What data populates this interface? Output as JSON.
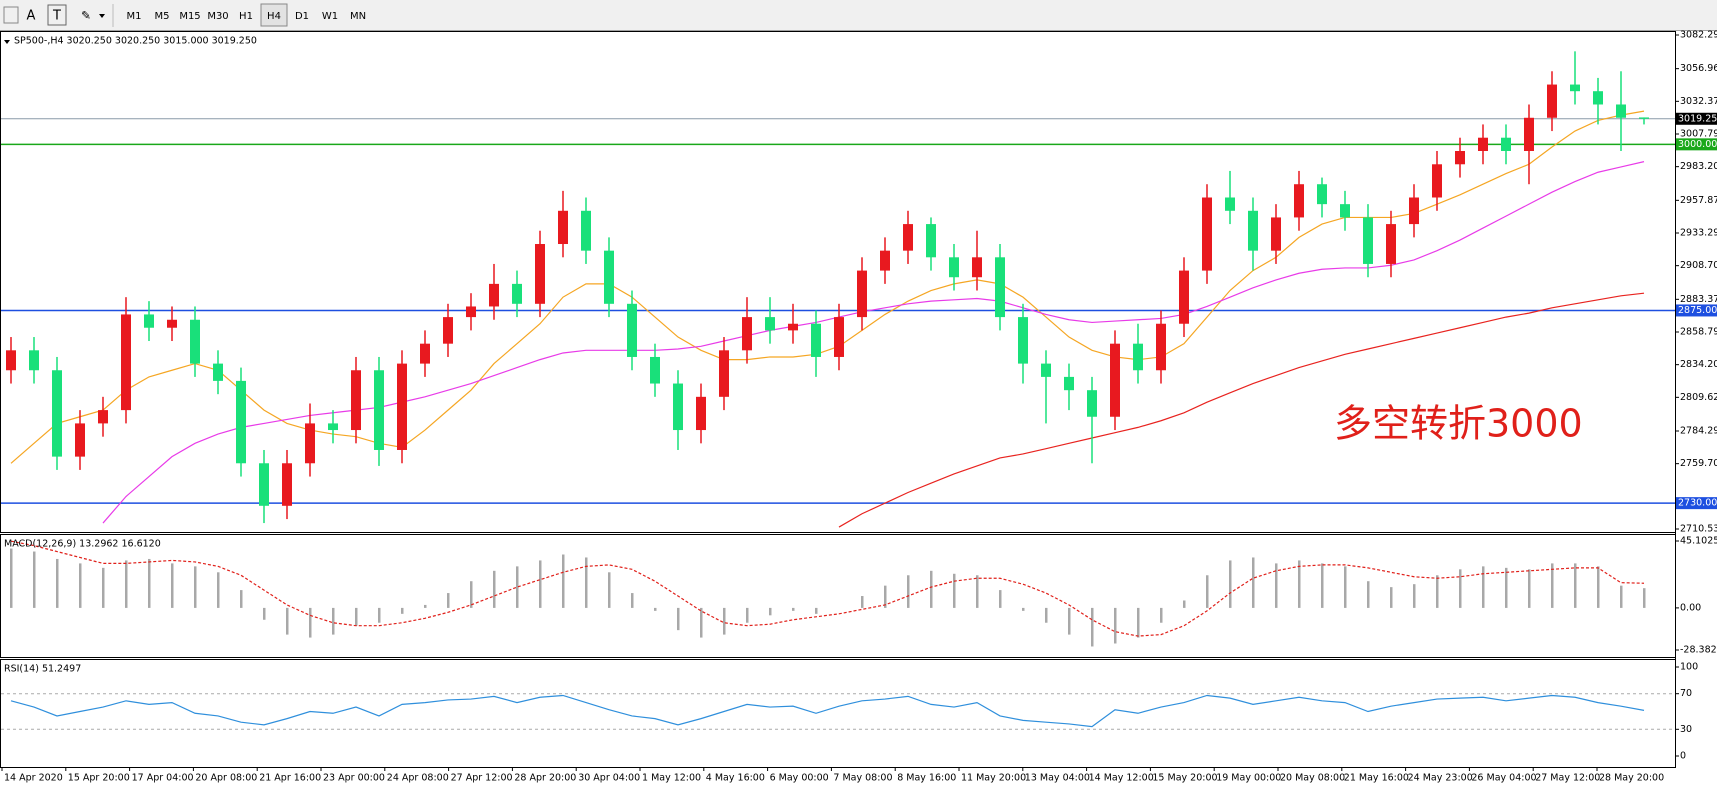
{
  "toolbar": {
    "tools": [
      "A",
      "T"
    ],
    "timeframes": [
      "M1",
      "M5",
      "M15",
      "M30",
      "H1",
      "H4",
      "D1",
      "W1",
      "MN"
    ],
    "active": "H4"
  },
  "time_labels": [
    "14 Apr 2020",
    "15 Apr 20:00",
    "17 Apr 04:00",
    "20 Apr 08:00",
    "21 Apr 16:00",
    "23 Apr 00:00",
    "24 Apr 08:00",
    "27 Apr 12:00",
    "28 Apr 20:00",
    "30 Apr 04:00",
    "1 May 12:00",
    "4 May 16:00",
    "6 May 00:00",
    "7 May 08:00",
    "8 May 16:00",
    "11 May 20:00",
    "13 May 04:00",
    "14 May 12:00",
    "15 May 20:00",
    "19 May 00:00",
    "20 May 08:00",
    "21 May 16:00",
    "24 May 23:00",
    "26 May 04:00",
    "27 May 12:00",
    "28 May 20:00"
  ],
  "chart_data": [
    {
      "type": "candlestick",
      "title": "SP500-,H4  3020.250 3020.250 3015.000 3019.250",
      "up_color": "#e8191f",
      "down_color": "#19e07a",
      "open": [
        2830,
        2845,
        2830,
        2765,
        2790,
        2800,
        2872,
        2862,
        2868,
        2835,
        2822,
        2760,
        2728,
        2760,
        2790,
        2785,
        2830,
        2770,
        2835,
        2850,
        2870,
        2878,
        2895,
        2880,
        2925,
        2950,
        2920,
        2880,
        2840,
        2820,
        2785,
        2810,
        2845,
        2870,
        2860,
        2865,
        2840,
        2870,
        2905,
        2920,
        2940,
        2915,
        2900,
        2915,
        2870,
        2835,
        2825,
        2815,
        2795,
        2850,
        2830,
        2865,
        2905,
        2960,
        2950,
        2920,
        2945,
        2970,
        2955,
        2945,
        2910,
        2940,
        2960,
        2985,
        2995,
        3005,
        2995,
        3020,
        3045,
        3040,
        3030,
        3020.25
      ],
      "high": [
        2855,
        2855,
        2840,
        2800,
        2810,
        2885,
        2882,
        2878,
        2878,
        2845,
        2832,
        2770,
        2770,
        2805,
        2800,
        2840,
        2840,
        2845,
        2860,
        2880,
        2888,
        2910,
        2905,
        2935,
        2965,
        2960,
        2930,
        2890,
        2850,
        2830,
        2820,
        2855,
        2885,
        2885,
        2880,
        2875,
        2880,
        2915,
        2930,
        2950,
        2945,
        2925,
        2935,
        2925,
        2880,
        2845,
        2835,
        2825,
        2860,
        2865,
        2875,
        2915,
        2970,
        2980,
        2960,
        2955,
        2980,
        2975,
        2965,
        2955,
        2950,
        2970,
        2995,
        3005,
        3015,
        3015,
        3030,
        3055,
        3070,
        3050,
        3055,
        3020.25
      ],
      "low": [
        2820,
        2820,
        2755,
        2755,
        2780,
        2790,
        2852,
        2852,
        2825,
        2812,
        2750,
        2715,
        2718,
        2750,
        2775,
        2775,
        2758,
        2760,
        2825,
        2840,
        2860,
        2868,
        2870,
        2870,
        2915,
        2910,
        2870,
        2830,
        2810,
        2770,
        2775,
        2800,
        2835,
        2850,
        2850,
        2825,
        2830,
        2860,
        2895,
        2910,
        2905,
        2890,
        2890,
        2860,
        2820,
        2790,
        2800,
        2760,
        2785,
        2820,
        2820,
        2855,
        2895,
        2940,
        2905,
        2910,
        2935,
        2945,
        2935,
        2900,
        2900,
        2930,
        2950,
        2975,
        2985,
        2985,
        2970,
        3010,
        3030,
        3015,
        2995,
        3015
      ],
      "close": [
        2845,
        2830,
        2765,
        2790,
        2800,
        2872,
        2862,
        2868,
        2835,
        2822,
        2760,
        2728,
        2760,
        2790,
        2785,
        2830,
        2770,
        2835,
        2850,
        2870,
        2878,
        2895,
        2880,
        2925,
        2950,
        2920,
        2880,
        2840,
        2820,
        2785,
        2810,
        2845,
        2870,
        2860,
        2865,
        2840,
        2870,
        2905,
        2920,
        2940,
        2915,
        2900,
        2915,
        2870,
        2835,
        2825,
        2815,
        2795,
        2850,
        2830,
        2865,
        2905,
        2960,
        2950,
        2920,
        2945,
        2970,
        2955,
        2945,
        2910,
        2940,
        2960,
        2985,
        2995,
        3005,
        2995,
        3020,
        3045,
        3040,
        3030,
        3020,
        3019.25
      ],
      "lines": [
        {
          "color": "#f5a623",
          "values": [
            2760,
            2775,
            2790,
            2795,
            2800,
            2815,
            2825,
            2830,
            2835,
            2830,
            2815,
            2800,
            2790,
            2785,
            2782,
            2780,
            2775,
            2772,
            2785,
            2800,
            2815,
            2835,
            2850,
            2865,
            2885,
            2895,
            2895,
            2885,
            2870,
            2855,
            2845,
            2838,
            2838,
            2840,
            2840,
            2842,
            2848,
            2860,
            2872,
            2882,
            2890,
            2895,
            2898,
            2895,
            2885,
            2870,
            2855,
            2845,
            2840,
            2838,
            2840,
            2850,
            2870,
            2890,
            2905,
            2915,
            2930,
            2940,
            2945,
            2945,
            2945,
            2948,
            2955,
            2962,
            2970,
            2978,
            2985,
            2998,
            3010,
            3018,
            3022,
            3025
          ]
        },
        {
          "color": "#e83be8",
          "values": [
            null,
            null,
            null,
            null,
            2715,
            2735,
            2750,
            2765,
            2775,
            2782,
            2787,
            2790,
            2793,
            2796,
            2798,
            2800,
            2802,
            2806,
            2810,
            2815,
            2820,
            2826,
            2832,
            2838,
            2843,
            2845,
            2845,
            2845,
            2845,
            2846,
            2848,
            2852,
            2856,
            2860,
            2863,
            2866,
            2870,
            2874,
            2877,
            2880,
            2882,
            2883,
            2884,
            2882,
            2877,
            2872,
            2868,
            2866,
            2867,
            2868,
            2869,
            2872,
            2878,
            2885,
            2892,
            2898,
            2903,
            2906,
            2907,
            2907,
            2909,
            2913,
            2920,
            2928,
            2937,
            2946,
            2955,
            2964,
            2972,
            2979,
            2983,
            2987
          ]
        },
        {
          "color": "#e8231f",
          "values": [
            null,
            null,
            null,
            null,
            null,
            null,
            null,
            null,
            null,
            null,
            null,
            null,
            null,
            null,
            null,
            null,
            null,
            null,
            null,
            null,
            null,
            null,
            null,
            null,
            null,
            null,
            null,
            null,
            null,
            null,
            null,
            null,
            null,
            null,
            null,
            null,
            2712,
            2722,
            2730,
            2738,
            2745,
            2752,
            2758,
            2764,
            2767,
            2771,
            2775,
            2779,
            2783,
            2787,
            2792,
            2798,
            2806,
            2813,
            2820,
            2826,
            2832,
            2837,
            2842,
            2846,
            2850,
            2854,
            2858,
            2862,
            2866,
            2870,
            2873,
            2877,
            2880,
            2883,
            2886,
            2888
          ]
        }
      ],
      "levels": [
        {
          "value": 3019.25,
          "label": "3019.250",
          "color": "#8a9aa8",
          "label_bg": "#000000"
        },
        {
          "value": 3000,
          "label": "3000.000",
          "color": "#1aa81a",
          "label_bg": "#1aa81a"
        },
        {
          "value": 2875,
          "label": "2875.000",
          "color": "#1d4fe0",
          "label_bg": "#1d4fe0"
        },
        {
          "value": 2730,
          "label": "2730.000",
          "color": "#1d4fe0",
          "label_bg": "#1d4fe0"
        }
      ],
      "annotation": {
        "text": "多空转折3000",
        "color": "#e0201a"
      },
      "ylim": [
        2710.535,
        3082.29
      ],
      "yticks": [
        {
          "value": 3082.29,
          "label": "3082.290"
        },
        {
          "value": 3056.96,
          "label": "3056.960"
        },
        {
          "value": 3032.375,
          "label": "3032.375"
        },
        {
          "value": 3007.79,
          "label": "3007.790"
        },
        {
          "value": 2983.205,
          "label": "2983.205"
        },
        {
          "value": 2957.875,
          "label": "2957.875"
        },
        {
          "value": 2933.29,
          "label": "2933.290"
        },
        {
          "value": 2908.705,
          "label": "2908.705"
        },
        {
          "value": 2883.375,
          "label": "2883.375"
        },
        {
          "value": 2858.79,
          "label": "2858.790"
        },
        {
          "value": 2834.205,
          "label": "2834.205"
        },
        {
          "value": 2809.62,
          "label": "2809.620"
        },
        {
          "value": 2784.29,
          "label": "2784.290"
        },
        {
          "value": 2759.705,
          "label": "2759.705"
        },
        {
          "value": 2710.535,
          "label": "2710.535"
        }
      ]
    },
    {
      "type": "macd",
      "title": "MACD(12,26,9) 13.2962 16.6120",
      "bar_color": "#a8a8a8",
      "signal_color": "#e0201a",
      "histogram": [
        40,
        38,
        33,
        30,
        27,
        32,
        33,
        30,
        28,
        24,
        12,
        -8,
        -18,
        -20,
        -18,
        -12,
        -10,
        -4,
        2,
        10,
        18,
        25,
        28,
        32,
        36,
        34,
        24,
        10,
        -2,
        -15,
        -20,
        -18,
        -10,
        -5,
        -2,
        -4,
        0,
        8,
        15,
        22,
        25,
        23,
        22,
        12,
        -2,
        -10,
        -18,
        -26,
        -24,
        -20,
        -10,
        5,
        22,
        32,
        34,
        30,
        32,
        30,
        28,
        18,
        14,
        16,
        22,
        26,
        28,
        27,
        26,
        30,
        30,
        28,
        15,
        13.2962
      ],
      "signal": [
        45,
        42,
        38,
        34,
        30,
        30,
        31,
        32,
        31,
        28,
        22,
        12,
        2,
        -5,
        -10,
        -12,
        -12,
        -10,
        -7,
        -3,
        2,
        8,
        14,
        19,
        24,
        28,
        29,
        26,
        18,
        8,
        -2,
        -10,
        -12,
        -11,
        -8,
        -6,
        -4,
        -1,
        2,
        8,
        14,
        18,
        20,
        20,
        16,
        10,
        2,
        -8,
        -16,
        -19,
        -18,
        -12,
        -2,
        10,
        20,
        25,
        28,
        29,
        29,
        27,
        24,
        21,
        20,
        21,
        23,
        24,
        25,
        26,
        27,
        27,
        17,
        16.612
      ],
      "ylim": [
        -28.3821,
        45.1025
      ],
      "yticks": [
        45.1025,
        {
          "value": 0,
          "label": "0.00"
        },
        -28.3821
      ]
    },
    {
      "type": "line",
      "title": "RSI(14) 51.2497",
      "color": "#2f8fdc",
      "values": [
        62,
        55,
        45,
        50,
        55,
        62,
        58,
        60,
        48,
        45,
        38,
        35,
        42,
        50,
        48,
        55,
        45,
        58,
        60,
        63,
        64,
        67,
        60,
        66,
        68,
        60,
        52,
        45,
        42,
        35,
        42,
        50,
        58,
        55,
        56,
        48,
        56,
        62,
        64,
        67,
        58,
        55,
        60,
        45,
        40,
        38,
        36,
        33,
        52,
        48,
        55,
        60,
        68,
        65,
        58,
        62,
        66,
        62,
        60,
        50,
        56,
        60,
        64,
        65,
        66,
        62,
        65,
        68,
        66,
        60,
        56,
        51.2497
      ],
      "ylim": [
        0,
        100
      ],
      "yticks": [
        100,
        70,
        30,
        0
      ]
    }
  ]
}
